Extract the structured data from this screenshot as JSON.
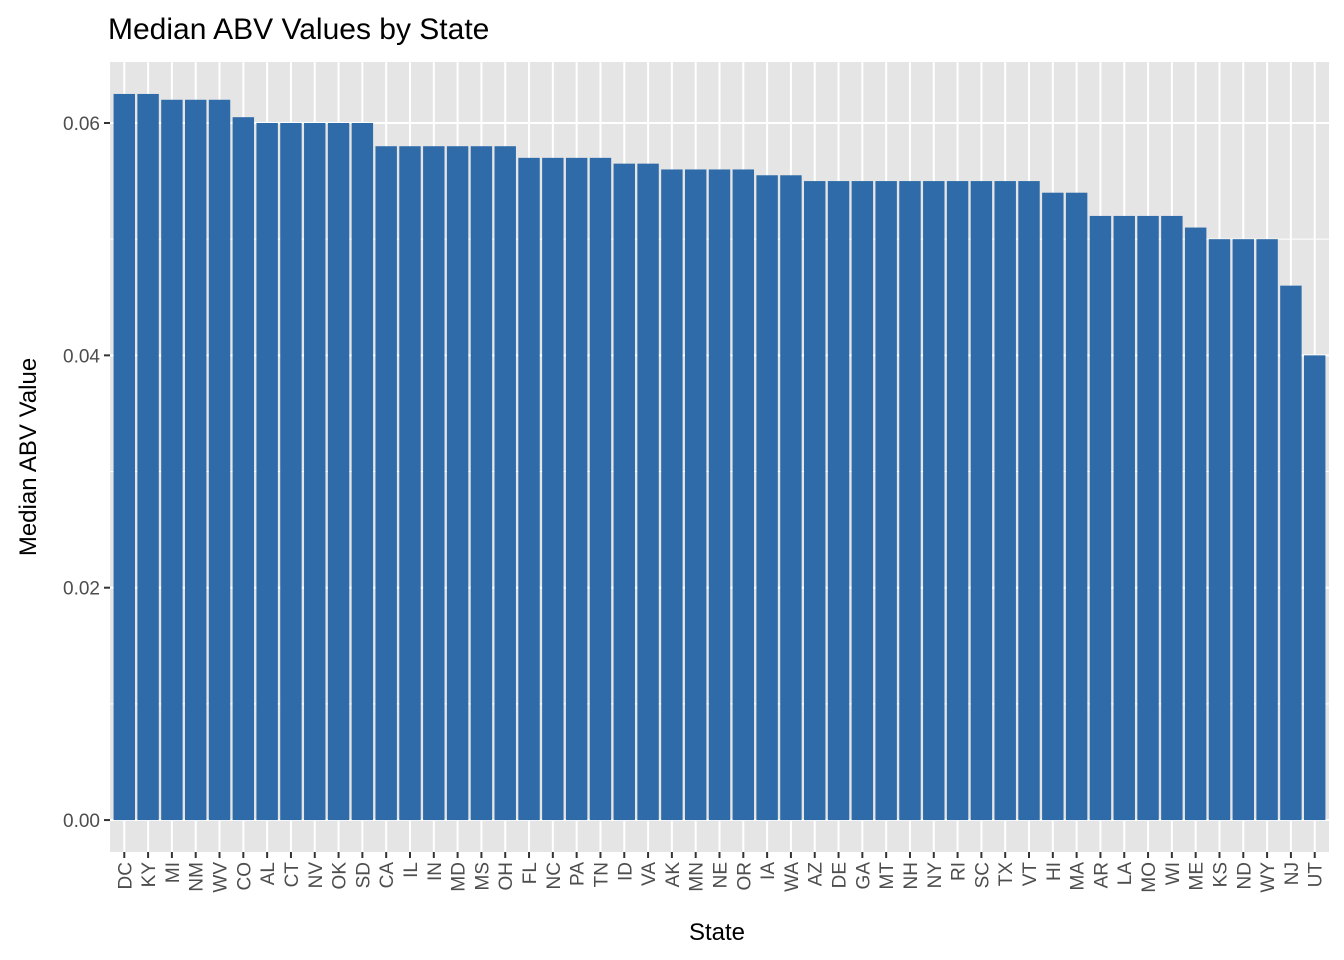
{
  "chart_data": {
    "type": "bar",
    "title": "Median ABV Values by State",
    "xlabel": "State",
    "ylabel": "Median ABV Value",
    "categories": [
      "DC",
      "KY",
      "MI",
      "NM",
      "WV",
      "CO",
      "AL",
      "CT",
      "NV",
      "OK",
      "SD",
      "CA",
      "IL",
      "IN",
      "MD",
      "MS",
      "OH",
      "FL",
      "NC",
      "PA",
      "TN",
      "ID",
      "VA",
      "AK",
      "MN",
      "NE",
      "OR",
      "IA",
      "WA",
      "AZ",
      "DE",
      "GA",
      "MT",
      "NH",
      "NY",
      "RI",
      "SC",
      "TX",
      "VT",
      "HI",
      "MA",
      "AR",
      "LA",
      "MO",
      "WI",
      "ME",
      "KS",
      "ND",
      "WY",
      "NJ",
      "UT"
    ],
    "values": [
      0.0625,
      0.0625,
      0.062,
      0.062,
      0.062,
      0.0605,
      0.06,
      0.06,
      0.06,
      0.06,
      0.06,
      0.058,
      0.058,
      0.058,
      0.058,
      0.058,
      0.058,
      0.057,
      0.057,
      0.057,
      0.057,
      0.0565,
      0.0565,
      0.056,
      0.056,
      0.056,
      0.056,
      0.0555,
      0.0555,
      0.055,
      0.055,
      0.055,
      0.055,
      0.055,
      0.055,
      0.055,
      0.055,
      0.055,
      0.055,
      0.054,
      0.054,
      0.052,
      0.052,
      0.052,
      0.052,
      0.051,
      0.05,
      0.05,
      0.05,
      0.046,
      0.04
    ],
    "ylim": [
      -0.00275,
      0.06525
    ],
    "yticks": [
      0.0,
      0.02,
      0.04,
      0.06
    ],
    "ytick_labels": [
      "0.00",
      "0.02",
      "0.04",
      "0.06"
    ],
    "grid": true,
    "bar_color": "#2E6BA8",
    "panel_color": "#E5E5E5",
    "grid_color": "#FFFFFF"
  }
}
